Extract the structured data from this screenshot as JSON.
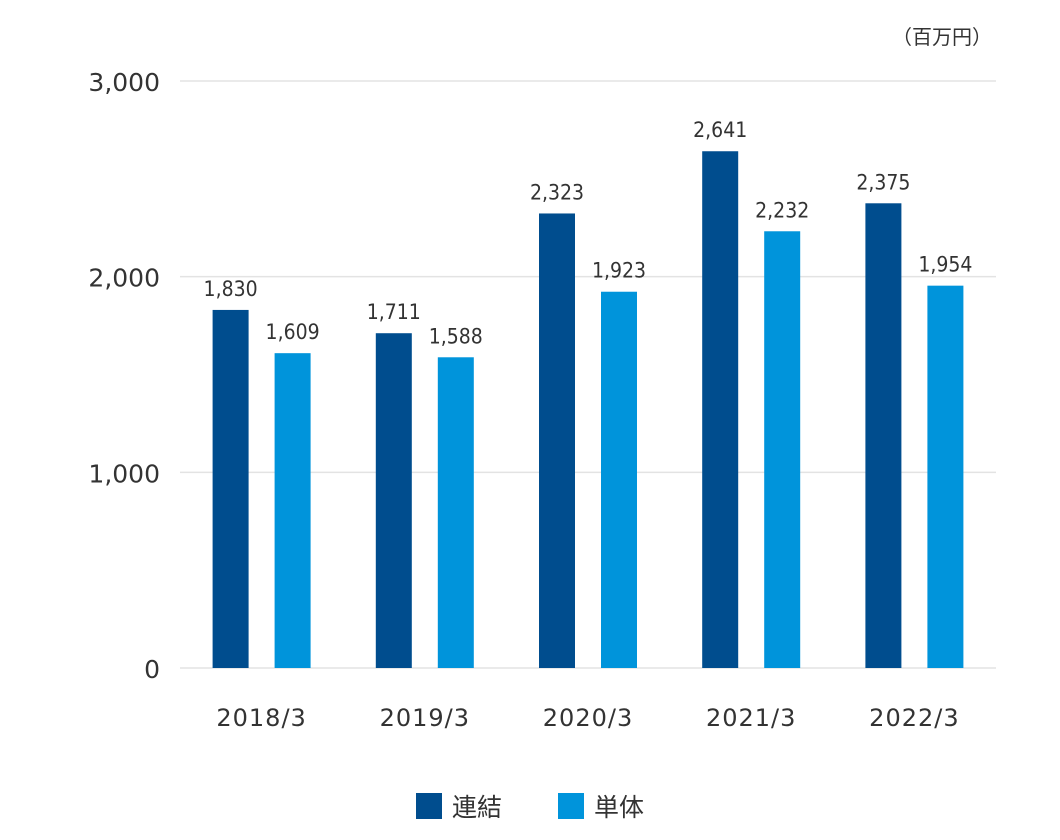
{
  "chart_data": {
    "type": "bar",
    "unit_label": "（百万円）",
    "categories": [
      "2018/3",
      "2019/3",
      "2020/3",
      "2021/3",
      "2022/3"
    ],
    "series": [
      {
        "name": "連結",
        "values": [
          1830,
          1711,
          2323,
          2641,
          2375
        ],
        "labels": [
          "1,830",
          "1,711",
          "2,323",
          "2,641",
          "2,375"
        ],
        "color": "#004D8E"
      },
      {
        "name": "単体",
        "values": [
          1609,
          1588,
          1923,
          2232,
          1954
        ],
        "labels": [
          "1,609",
          "1,588",
          "1,923",
          "2,232",
          "1,954"
        ],
        "color": "#0094DB"
      }
    ],
    "ylim": [
      0,
      3000
    ],
    "yticks": [
      0,
      1000,
      2000,
      3000
    ],
    "ytick_labels": [
      "0",
      "1,000",
      "2,000",
      "3,000"
    ],
    "grid": true,
    "legend_position": "bottom-center"
  }
}
